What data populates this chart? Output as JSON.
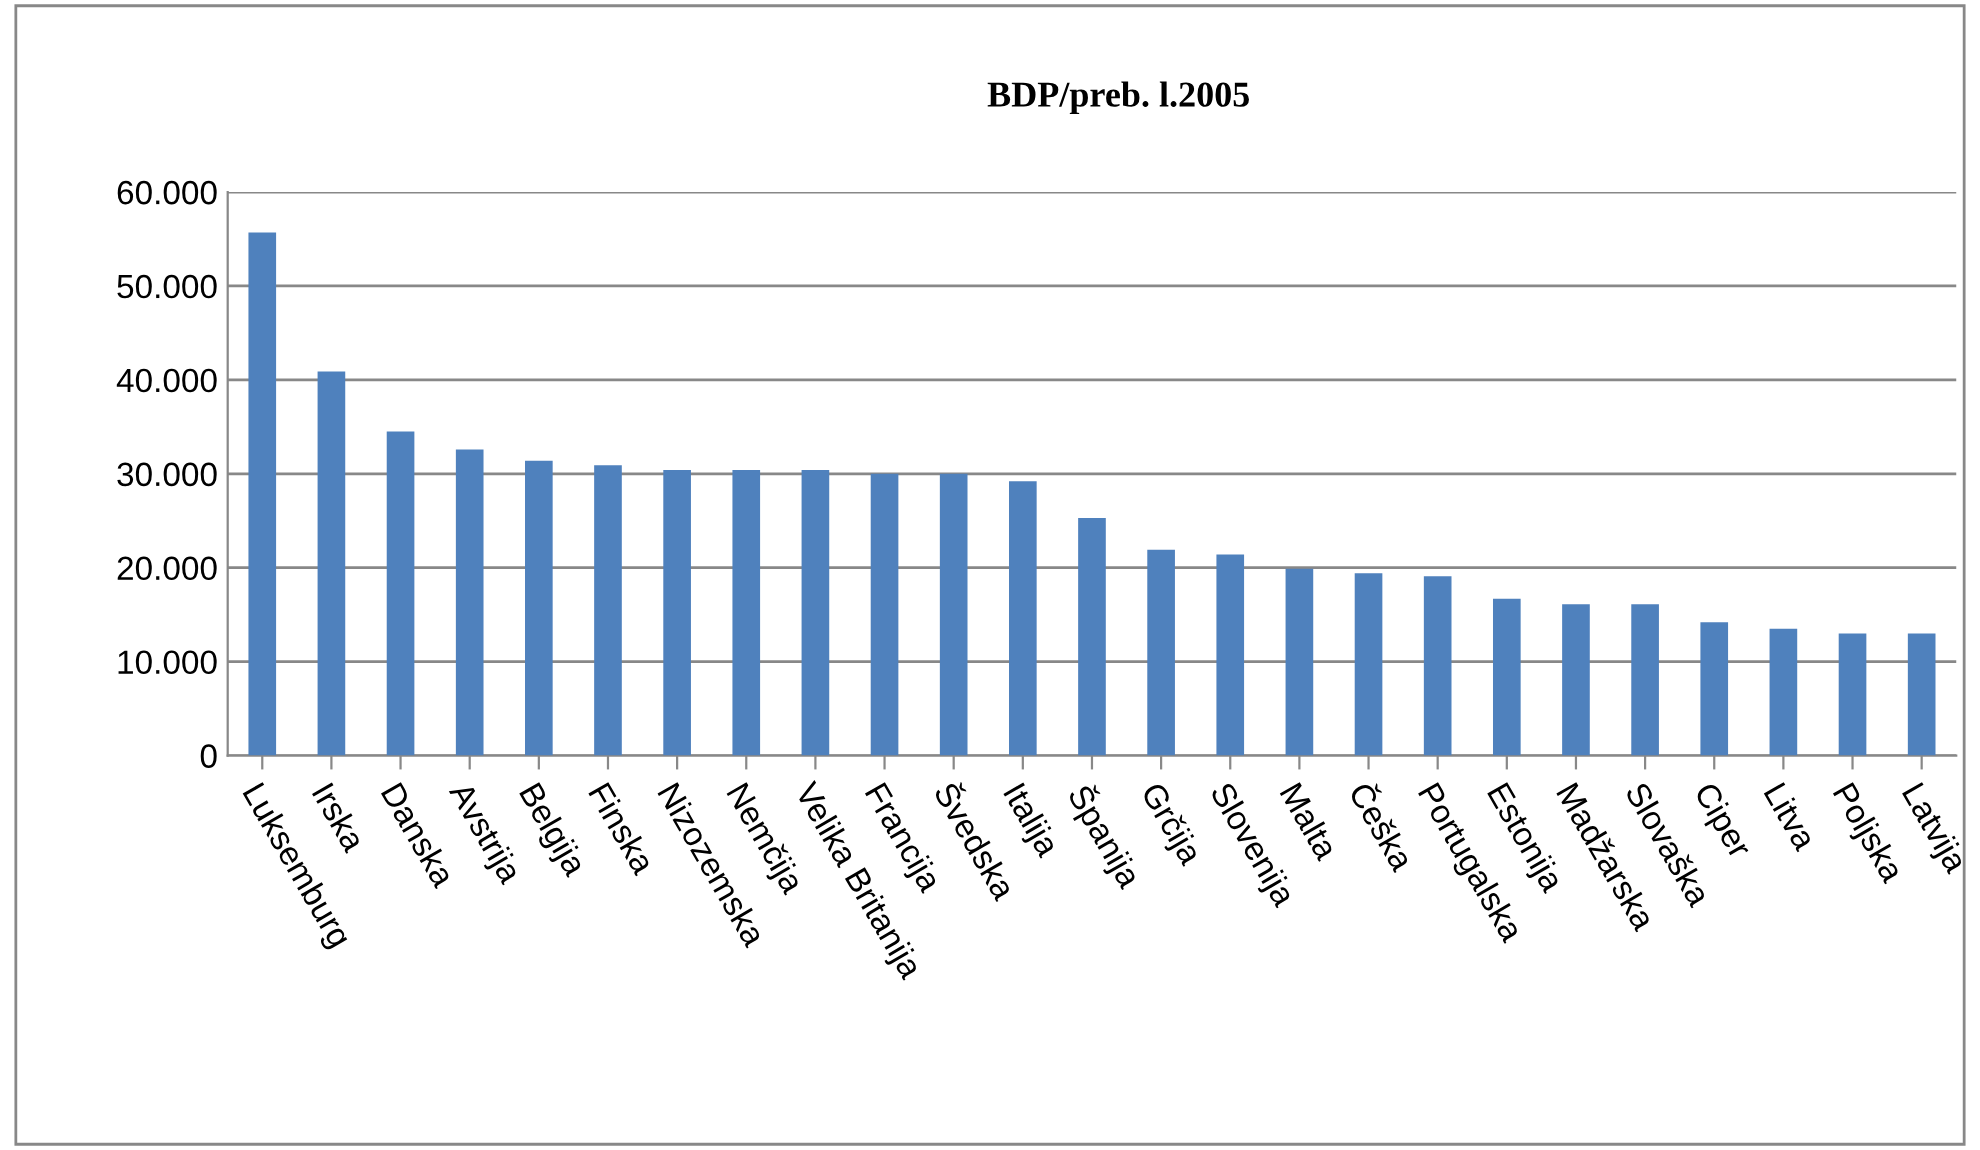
{
  "chart_data": {
    "type": "bar",
    "title": "BDP/preb. l.2005",
    "categories": [
      "Luksemburg",
      "Irska",
      "Danska",
      "Avstrija",
      "Belgija",
      "Finska",
      "Nizozemska",
      "Nemčija",
      "Velika Britanija",
      "Francija",
      "Švedska",
      "Italija",
      "Španija",
      "Grčija",
      "Slovenija",
      "Malta",
      "Češka",
      "Portugalska",
      "Estonija",
      "Madžarska",
      "Slovaška",
      "Ciper",
      "Litva",
      "Poljska",
      "Latvija"
    ],
    "values": [
      55700,
      40900,
      34500,
      32600,
      31400,
      30900,
      30400,
      30400,
      30400,
      30000,
      30000,
      29200,
      25300,
      21900,
      21400,
      19900,
      19400,
      19100,
      16700,
      16100,
      16100,
      14200,
      13500,
      13000,
      13000
    ],
    "color": "#4f81bd",
    "ylim": [
      0,
      60000
    ],
    "yticks": [
      {
        "value": 0,
        "label": "0"
      },
      {
        "value": 10000,
        "label": "10.000"
      },
      {
        "value": 20000,
        "label": "20.000"
      },
      {
        "value": 30000,
        "label": "30.000"
      },
      {
        "value": 40000,
        "label": "40.000"
      },
      {
        "value": 50000,
        "label": "50.000"
      },
      {
        "value": 60000,
        "label": "60.000"
      }
    ],
    "grid": "y"
  }
}
